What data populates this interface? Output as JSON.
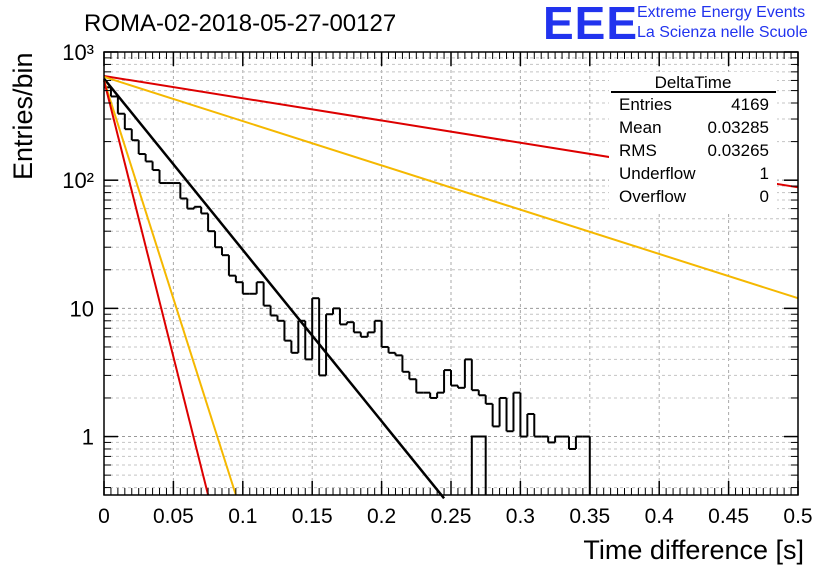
{
  "header": {
    "title": "ROMA-02-2018-05-27-00127",
    "logo_text": "EEE",
    "logo_line1": "Extreme Energy Events",
    "logo_line2": "La Scienza nelle Scuole"
  },
  "stats": {
    "name": "DeltaTime",
    "rows": [
      {
        "label": "Entries",
        "value": "4169"
      },
      {
        "label": "Mean",
        "value": "0.03285"
      },
      {
        "label": "RMS",
        "value": "0.03265"
      },
      {
        "label": "Underflow",
        "value": "1"
      },
      {
        "label": "Overflow",
        "value": "0"
      }
    ]
  },
  "chart_data": {
    "type": "histogram",
    "title": "ROMA-02-2018-05-27-00127",
    "xlabel": "Time difference [s]",
    "ylabel": "Entries/bin",
    "xlim": [
      0,
      0.5
    ],
    "ylim": [
      0.35,
      1000
    ],
    "yscale": "log",
    "xticks": [
      "0",
      "0.05",
      "0.1",
      "0.15",
      "0.2",
      "0.25",
      "0.3",
      "0.35",
      "0.4",
      "0.45",
      "0.5"
    ],
    "yticks": [
      {
        "value": 1,
        "label": "1"
      },
      {
        "value": 10,
        "label": "10"
      },
      {
        "value": 100,
        "label": "10²"
      },
      {
        "value": 1000,
        "label": "10³"
      }
    ],
    "grid": true,
    "histogram": {
      "name": "DeltaTime",
      "color": "#000000",
      "bin_width": 0.005,
      "x_start": 0,
      "counts": [
        530,
        450,
        330,
        250,
        205,
        160,
        140,
        120,
        95,
        95,
        95,
        72,
        60,
        62,
        55,
        40,
        30,
        26,
        18,
        16,
        13,
        13,
        16,
        10.5,
        8.8,
        8,
        5.6,
        4.5,
        8,
        4,
        12,
        3,
        9,
        10,
        7.5,
        7.8,
        6.5,
        6,
        6.5,
        8,
        5,
        4.5,
        4.3,
        3.2,
        2.8,
        2.2,
        2.2,
        2,
        2.2,
        3.3,
        2.5,
        2.4,
        4,
        2.3,
        2.1,
        1.8,
        1.2,
        2,
        1.1,
        2.2,
        1,
        1.5,
        1,
        1,
        0.9,
        1,
        1,
        0.8,
        1,
        1
      ]
    },
    "series": [
      {
        "name": "fit",
        "color": "#000000",
        "x": [
          0.0,
          0.245
        ],
        "y": [
          620,
          0.33
        ],
        "label": ""
      },
      {
        "name": "upper-red",
        "color": "#dd0000",
        "x": [
          0.0,
          0.5
        ],
        "y": [
          650,
          88
        ],
        "label": ""
      },
      {
        "name": "upper-yellow",
        "color": "#f5b800",
        "x": [
          0.0,
          0.5
        ],
        "y": [
          640,
          12
        ],
        "label": ""
      },
      {
        "name": "lower-yellow",
        "color": "#f5b800",
        "x": [
          0.0,
          0.095
        ],
        "y": [
          600,
          0.35
        ],
        "label": ""
      },
      {
        "name": "lower-red",
        "color": "#dd0000",
        "x": [
          0.0,
          0.075
        ],
        "y": [
          600,
          0.35
        ],
        "label": ""
      }
    ]
  }
}
